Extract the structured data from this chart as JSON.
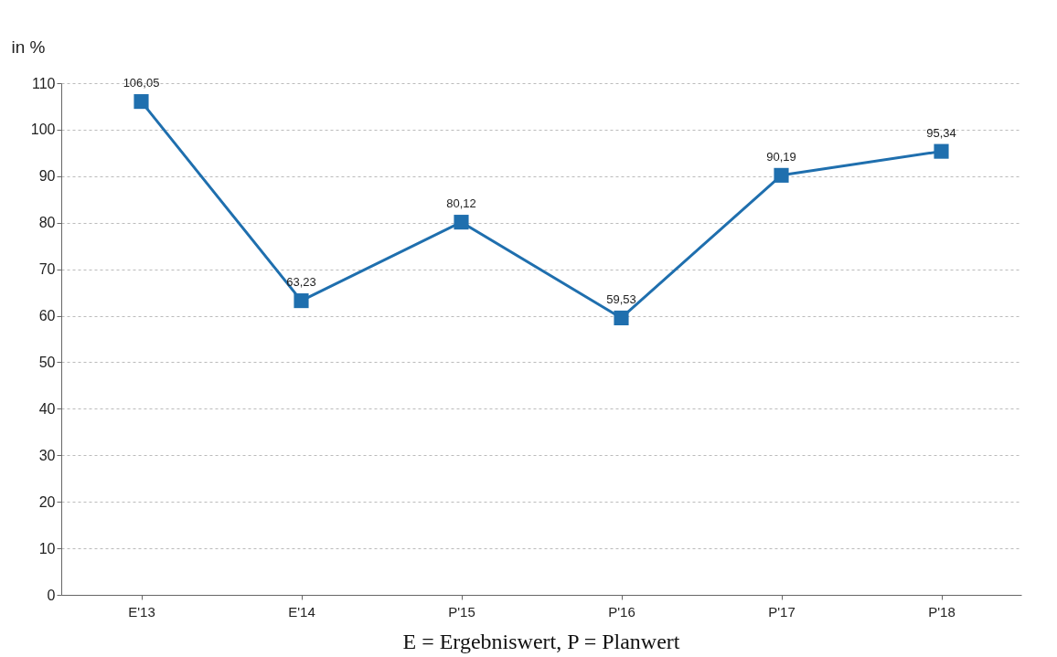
{
  "chart_data": {
    "type": "line",
    "ylabel": "in %",
    "categories": [
      "E'13",
      "E'14",
      "P'15",
      "P'16",
      "P'17",
      "P'18"
    ],
    "series": [
      {
        "color": "#1f6fae",
        "values": [
          106.05,
          63.23,
          80.12,
          59.53,
          90.19,
          95.34
        ],
        "value_labels": [
          "106,05",
          "63,23",
          "80,12",
          "59,53",
          "90,19",
          "95,34"
        ]
      }
    ],
    "ylim": [
      0,
      110
    ],
    "yticks": [
      0,
      10,
      20,
      30,
      40,
      50,
      60,
      70,
      80,
      90,
      100,
      110
    ],
    "grid": "y",
    "marker": "square",
    "line_style": "solid",
    "annotations": [
      "E = Ergebniswert, P = Planwert"
    ]
  }
}
